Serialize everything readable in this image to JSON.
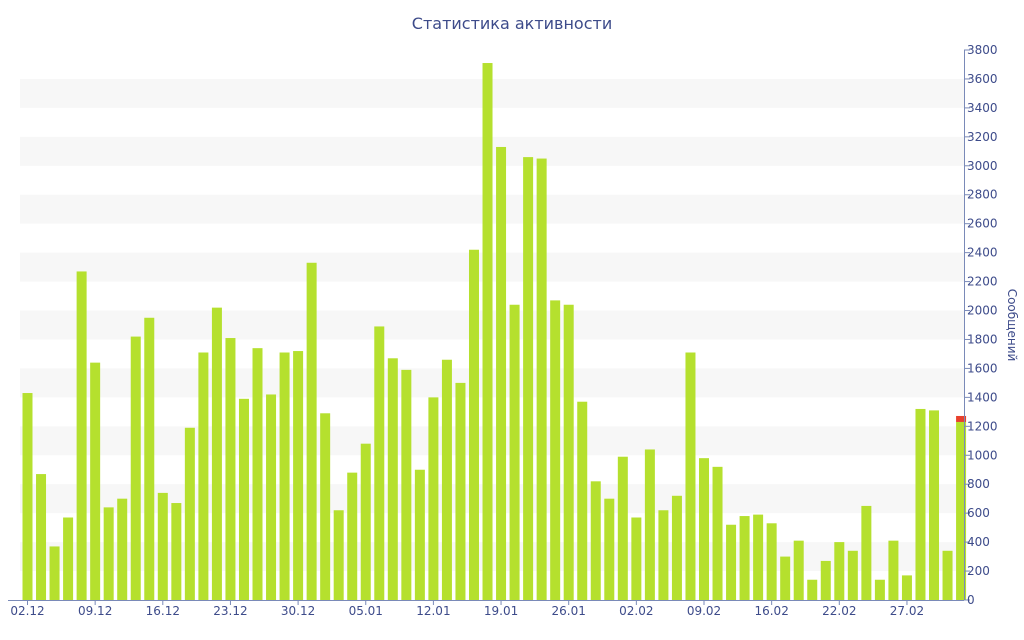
{
  "chart_data": {
    "type": "bar",
    "title": "Статистика активности",
    "ylabel": "Сообщений",
    "xlabel": "",
    "ylim": [
      0,
      3800
    ],
    "y_ticks": [
      0,
      200,
      400,
      600,
      800,
      1000,
      1200,
      1400,
      1600,
      1800,
      2000,
      2200,
      2400,
      2600,
      2800,
      3000,
      3200,
      3400,
      3600,
      3800
    ],
    "y_axis_side": "right",
    "grid": "alternating horizontal bands",
    "x_tick_labels": [
      {
        "index": 0,
        "label": "02.12"
      },
      {
        "index": 5,
        "label": "09.12"
      },
      {
        "index": 10,
        "label": "16.12"
      },
      {
        "index": 15,
        "label": "23.12"
      },
      {
        "index": 20,
        "label": "30.12"
      },
      {
        "index": 25,
        "label": "05.01"
      },
      {
        "index": 30,
        "label": "12.01"
      },
      {
        "index": 35,
        "label": "19.01"
      },
      {
        "index": 40,
        "label": "26.01"
      },
      {
        "index": 45,
        "label": "02.02"
      },
      {
        "index": 50,
        "label": "09.02"
      },
      {
        "index": 55,
        "label": "16.02"
      },
      {
        "index": 60,
        "label": "22.02"
      },
      {
        "index": 65,
        "label": "27.02"
      }
    ],
    "values": [
      1430,
      870,
      370,
      570,
      2270,
      1640,
      640,
      700,
      1820,
      1950,
      740,
      670,
      1190,
      1710,
      2020,
      1810,
      1390,
      1740,
      1420,
      1710,
      1720,
      2330,
      1290,
      620,
      880,
      1080,
      1890,
      1670,
      1590,
      900,
      1400,
      1660,
      1500,
      2420,
      3710,
      3130,
      2040,
      3060,
      3050,
      2070,
      2040,
      1370,
      820,
      700,
      990,
      570,
      1040,
      620,
      720,
      1710,
      980,
      920,
      520,
      580,
      590,
      530,
      300,
      410,
      140,
      270,
      400,
      340,
      650,
      140,
      410,
      170,
      1320,
      1310,
      340,
      1230
    ],
    "bar_color": "#b5e02e",
    "highlight_index": 69,
    "highlight_color": "#e8412c"
  }
}
